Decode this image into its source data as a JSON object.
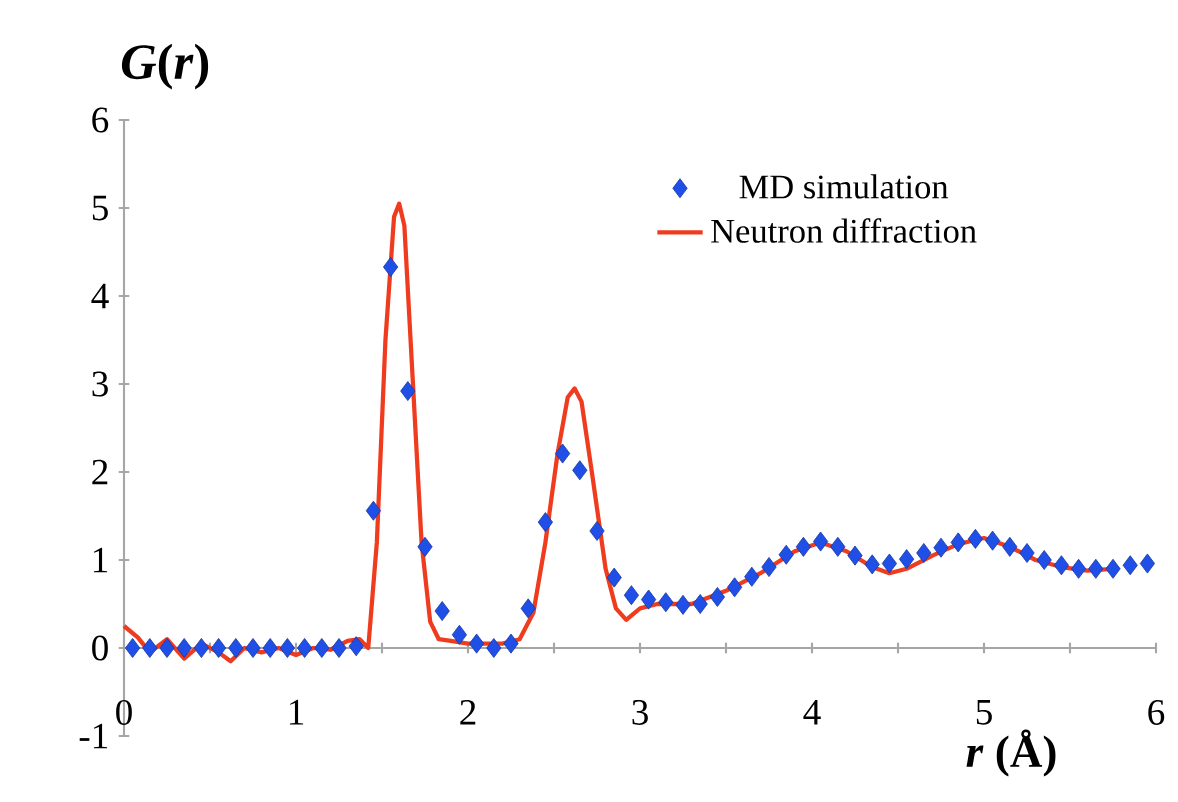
{
  "chart_data": {
    "type": "scatter",
    "xlabel": "*r* (Å)",
    "ylabel": "*G*(*r*)",
    "xlim": [
      0,
      6
    ],
    "ylim": [
      -1,
      6
    ],
    "xticks": [
      0,
      {
        "value": 0.5,
        "label": null
      },
      1,
      {
        "value": 1.5,
        "label": null
      },
      2,
      {
        "value": 2.5,
        "label": null
      },
      3,
      {
        "value": 3.5,
        "label": null
      },
      4,
      {
        "value": 4.5,
        "label": null
      },
      5,
      {
        "value": 5.5,
        "label": null
      },
      6
    ],
    "yticks": [
      -1,
      0,
      1,
      2,
      3,
      4,
      5,
      6
    ],
    "legend": "top right",
    "series": [
      {
        "name": "MD simulation",
        "marker": "diamond",
        "color": "#1f4fe6",
        "x": [
          0.05,
          0.15,
          0.25,
          0.35,
          0.45,
          0.55,
          0.65,
          0.75,
          0.85,
          0.95,
          1.05,
          1.15,
          1.25,
          1.35,
          1.45,
          1.55,
          1.65,
          1.75,
          1.85,
          1.95,
          2.05,
          2.15,
          2.25,
          2.35,
          2.45,
          2.55,
          2.65,
          2.75,
          2.85,
          2.95,
          3.05,
          3.15,
          3.25,
          3.35,
          3.45,
          3.55,
          3.65,
          3.75,
          3.85,
          3.95,
          4.05,
          4.15,
          4.25,
          4.35,
          4.45,
          4.55,
          4.65,
          4.75,
          4.85,
          4.95,
          5.05,
          5.15,
          5.25,
          5.35,
          5.45,
          5.55,
          5.65,
          5.75,
          5.85,
          5.95
        ],
        "values": [
          0,
          0,
          0,
          0,
          0,
          0,
          0,
          0,
          0,
          0,
          0,
          0,
          0,
          0.02,
          1.56,
          4.33,
          2.92,
          1.15,
          0.42,
          0.15,
          0.05,
          0,
          0.05,
          0.45,
          1.43,
          2.21,
          2.02,
          1.33,
          0.8,
          0.6,
          0.55,
          0.52,
          0.49,
          0.5,
          0.58,
          0.69,
          0.81,
          0.92,
          1.06,
          1.15,
          1.21,
          1.15,
          1.05,
          0.95,
          0.96,
          1.01,
          1.08,
          1.14,
          1.2,
          1.24,
          1.22,
          1.15,
          1.08,
          1,
          0.94,
          0.9,
          0.9,
          0.9,
          0.94,
          0.96
        ]
      },
      {
        "name": "Neutron diffraction",
        "type": "line",
        "line_style": "solid",
        "color": "#f03c1e",
        "x": [
          0,
          0.08,
          0.15,
          0.25,
          0.35,
          0.45,
          0.55,
          0.62,
          0.7,
          0.8,
          0.9,
          1,
          1.1,
          1.2,
          1.3,
          1.37,
          1.42,
          1.47,
          1.52,
          1.57,
          1.6,
          1.63,
          1.68,
          1.73,
          1.78,
          1.83,
          1.9,
          2,
          2.1,
          2.2,
          2.3,
          2.38,
          2.45,
          2.52,
          2.58,
          2.62,
          2.66,
          2.72,
          2.8,
          2.86,
          2.92,
          3,
          3.1,
          3.3,
          3.5,
          3.7,
          3.9,
          4.05,
          4.2,
          4.35,
          4.45,
          4.55,
          4.7,
          4.85,
          5,
          5.15,
          5.3,
          5.45,
          5.6,
          5.75
        ],
        "values": [
          0.25,
          0.12,
          -0.05,
          0.1,
          -0.12,
          0.05,
          -0.05,
          -0.15,
          0,
          -0.05,
          0,
          -0.08,
          0,
          -0.02,
          0.08,
          0.1,
          0,
          1.2,
          3.5,
          4.9,
          5.05,
          4.8,
          3,
          1.2,
          0.3,
          0.1,
          0.08,
          0.05,
          0.05,
          0.05,
          0.1,
          0.4,
          1.2,
          2.2,
          2.85,
          2.95,
          2.8,
          2,
          0.9,
          0.45,
          0.32,
          0.45,
          0.5,
          0.5,
          0.65,
          0.85,
          1.1,
          1.2,
          1.1,
          0.92,
          0.85,
          0.9,
          1.05,
          1.18,
          1.25,
          1.15,
          1,
          0.92,
          0.88,
          0.9
        ]
      }
    ]
  }
}
